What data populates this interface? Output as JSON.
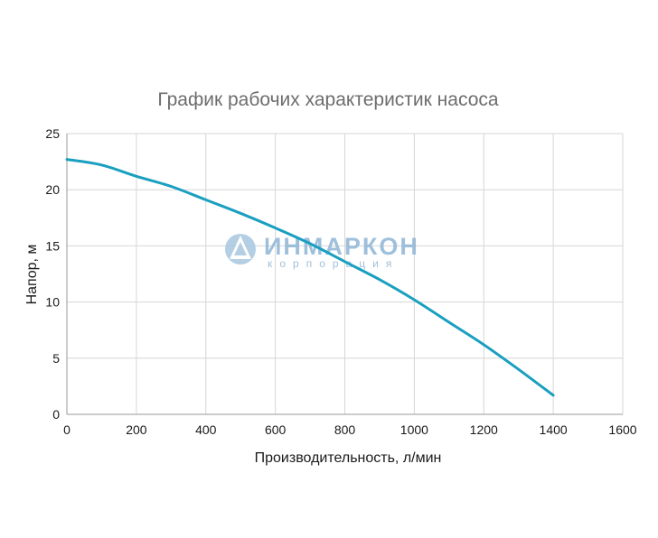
{
  "chart_data": {
    "type": "line",
    "title": "График рабочих характеристик насоса",
    "xlabel": "Производительность, л/мин",
    "ylabel": "Напор, м",
    "xlim": [
      0,
      1600
    ],
    "ylim": [
      0,
      25
    ],
    "x_ticks": [
      0,
      200,
      400,
      600,
      800,
      1000,
      1200,
      1400,
      1600
    ],
    "y_ticks": [
      0,
      5,
      10,
      15,
      20,
      25
    ],
    "grid": true,
    "series": [
      {
        "color": "#1a9fc0",
        "x": [
          0,
          100,
          200,
          300,
          400,
          500,
          600,
          700,
          800,
          900,
          1000,
          1100,
          1200,
          1300,
          1400
        ],
        "y": [
          22.7,
          22.2,
          21.2,
          20.3,
          19.1,
          17.9,
          16.6,
          15.2,
          13.6,
          12.0,
          10.2,
          8.2,
          6.2,
          4.0,
          1.7
        ]
      }
    ]
  },
  "watermark": {
    "brand": "ИНМАРКОН",
    "subtitle": "корпорация",
    "color": "#8fb6d6"
  }
}
